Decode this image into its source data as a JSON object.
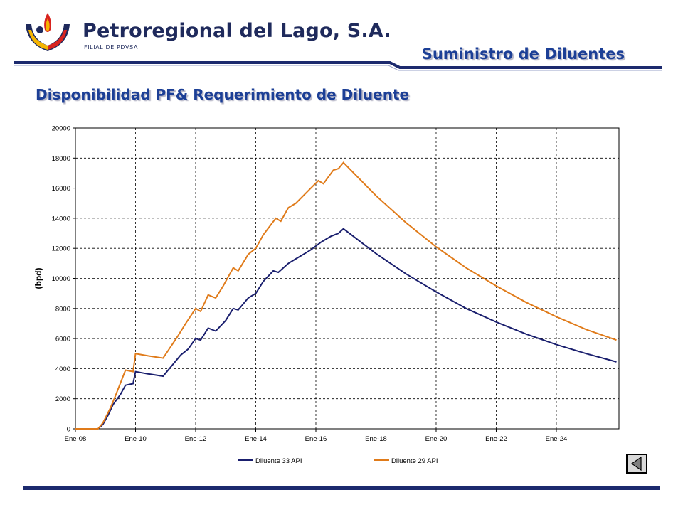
{
  "header": {
    "company": "Petroregional del Lago, S.A.",
    "subsidiary": "FILIAL DE PDVSA",
    "section": "Suministro de Diluentes"
  },
  "slide": {
    "title": "Disponibilidad PF& Requerimiento de Diluente"
  },
  "chart_data": {
    "type": "line",
    "title": "",
    "xlabel": "",
    "ylabel": "(bpd)",
    "xlim": [
      "2008-01",
      "2026-02"
    ],
    "ylim": [
      0,
      20000
    ],
    "yticks": [
      0,
      2000,
      4000,
      6000,
      8000,
      10000,
      12000,
      14000,
      16000,
      18000,
      20000
    ],
    "xticks": [
      "Ene-08",
      "Ene-10",
      "Ene-12",
      "Ene-14",
      "Ene-16",
      "Ene-18",
      "Ene-20",
      "Ene-22",
      "Ene-24"
    ],
    "grid": true,
    "legend_position": "bottom",
    "series": [
      {
        "name": "Diluente 33 API",
        "color": "#1a1f6e",
        "points": [
          [
            "2008-01",
            0
          ],
          [
            "2008-10",
            0
          ],
          [
            "2008-12",
            300
          ],
          [
            "2009-02",
            900
          ],
          [
            "2009-04",
            1600
          ],
          [
            "2009-07",
            2300
          ],
          [
            "2009-09",
            2900
          ],
          [
            "2009-12",
            3000
          ],
          [
            "2010-01",
            3800
          ],
          [
            "2010-06",
            3650
          ],
          [
            "2010-12",
            3500
          ],
          [
            "2011-02",
            3900
          ],
          [
            "2011-04",
            4300
          ],
          [
            "2011-07",
            4900
          ],
          [
            "2011-10",
            5300
          ],
          [
            "2012-01",
            6000
          ],
          [
            "2012-03",
            5900
          ],
          [
            "2012-06",
            6700
          ],
          [
            "2012-09",
            6500
          ],
          [
            "2013-01",
            7200
          ],
          [
            "2013-04",
            8000
          ],
          [
            "2013-06",
            7900
          ],
          [
            "2013-10",
            8700
          ],
          [
            "2014-01",
            9000
          ],
          [
            "2014-04",
            9800
          ],
          [
            "2014-08",
            10500
          ],
          [
            "2014-10",
            10400
          ],
          [
            "2015-02",
            11000
          ],
          [
            "2015-05",
            11300
          ],
          [
            "2015-08",
            11600
          ],
          [
            "2015-11",
            11900
          ],
          [
            "2016-03",
            12400
          ],
          [
            "2016-07",
            12800
          ],
          [
            "2016-10",
            13000
          ],
          [
            "2016-12",
            13300
          ],
          [
            "2018-01",
            11650
          ],
          [
            "2019-01",
            10300
          ],
          [
            "2020-01",
            9100
          ],
          [
            "2021-01",
            8000
          ],
          [
            "2022-01",
            7100
          ],
          [
            "2023-01",
            6300
          ],
          [
            "2024-01",
            5600
          ],
          [
            "2025-01",
            5000
          ],
          [
            "2026-01",
            4450
          ]
        ]
      },
      {
        "name": "Diluente 29 API",
        "color": "#e07b1a",
        "points": [
          [
            "2008-01",
            0
          ],
          [
            "2008-10",
            0
          ],
          [
            "2008-12",
            400
          ],
          [
            "2009-03",
            1400
          ],
          [
            "2009-05",
            2200
          ],
          [
            "2009-09",
            3900
          ],
          [
            "2009-12",
            3800
          ],
          [
            "2010-01",
            5000
          ],
          [
            "2010-06",
            4850
          ],
          [
            "2010-12",
            4700
          ],
          [
            "2011-02",
            5200
          ],
          [
            "2011-06",
            6200
          ],
          [
            "2011-09",
            7000
          ],
          [
            "2012-01",
            8000
          ],
          [
            "2012-03",
            7800
          ],
          [
            "2012-06",
            8900
          ],
          [
            "2012-09",
            8700
          ],
          [
            "2012-12",
            9500
          ],
          [
            "2013-04",
            10700
          ],
          [
            "2013-06",
            10500
          ],
          [
            "2013-10",
            11600
          ],
          [
            "2014-01",
            12000
          ],
          [
            "2014-04",
            12900
          ],
          [
            "2014-09",
            14000
          ],
          [
            "2014-11",
            13800
          ],
          [
            "2015-02",
            14700
          ],
          [
            "2015-05",
            15000
          ],
          [
            "2015-08",
            15500
          ],
          [
            "2015-11",
            16000
          ],
          [
            "2016-02",
            16500
          ],
          [
            "2016-04",
            16300
          ],
          [
            "2016-08",
            17200
          ],
          [
            "2016-10",
            17300
          ],
          [
            "2016-12",
            17700
          ],
          [
            "2018-01",
            15500
          ],
          [
            "2019-01",
            13700
          ],
          [
            "2020-01",
            12100
          ],
          [
            "2021-01",
            10700
          ],
          [
            "2022-01",
            9500
          ],
          [
            "2023-01",
            8400
          ],
          [
            "2024-01",
            7450
          ],
          [
            "2025-01",
            6600
          ],
          [
            "2026-01",
            5900
          ]
        ]
      }
    ]
  },
  "nav": {
    "back_icon": "triangle-left-icon"
  }
}
